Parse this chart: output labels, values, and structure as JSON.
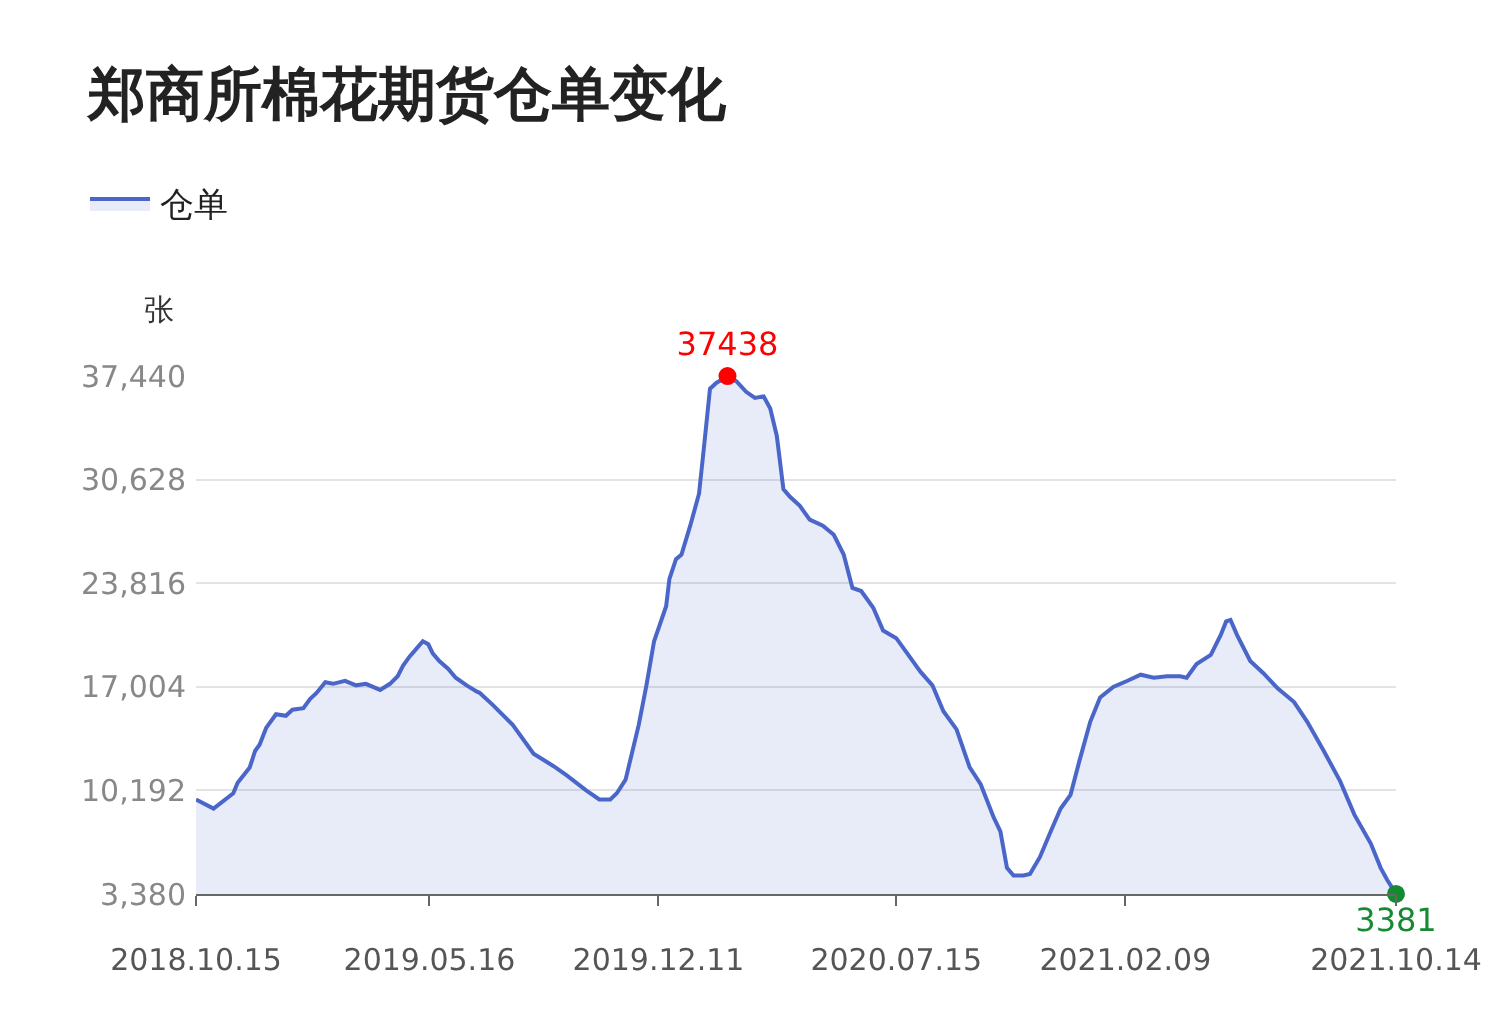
{
  "chart_data": {
    "type": "area",
    "title": "郑商所棉花期货仓单变化",
    "ylabel": "张",
    "xlim": [
      "2018-10-15",
      "2021-10-14"
    ],
    "xticks": [
      {
        "value": "2018-10-15",
        "label": "2018.10.15"
      },
      {
        "value": "2019-05-16",
        "label": "2019.05.16"
      },
      {
        "value": "2019-12-11",
        "label": "2019.12.11"
      },
      {
        "value": "2020-07-15",
        "label": "2020.07.15"
      },
      {
        "value": "2021-02-09",
        "label": "2021.02.09"
      },
      {
        "value": "2021-10-14",
        "label": "2021.10.14"
      }
    ],
    "ylim": [
      3380,
      37440
    ],
    "yticks": [
      {
        "value": 3380,
        "label": "3,380"
      },
      {
        "value": 10192,
        "label": "10,192"
      },
      {
        "value": 17004,
        "label": "17,004"
      },
      {
        "value": 23816,
        "label": "23,816"
      },
      {
        "value": 30628,
        "label": "30,628"
      },
      {
        "value": 37440,
        "label": "37,440"
      }
    ],
    "grid": "y",
    "legend": "top left",
    "series": [
      {
        "name": "仓单",
        "color": "#4a66c9",
        "x": [
          "2018-10-15",
          "2018-10-31",
          "2018-11-18",
          "2018-11-22",
          "2018-12-03",
          "2018-12-08",
          "2018-12-12",
          "2018-12-18",
          "2018-12-27",
          "2019-01-05",
          "2019-01-11",
          "2019-01-21",
          "2019-01-27",
          "2019-02-02",
          "2019-02-10",
          "2019-02-17",
          "2019-02-28",
          "2019-03-10",
          "2019-03-19",
          "2019-04-01",
          "2019-04-10",
          "2019-04-17",
          "2019-04-22",
          "2019-04-28",
          "2019-05-04",
          "2019-05-10",
          "2019-05-15",
          "2019-05-19",
          "2019-05-25",
          "2019-06-02",
          "2019-06-09",
          "2019-06-19",
          "2019-06-28",
          "2019-07-01",
          "2019-07-13",
          "2019-07-31",
          "2019-08-19",
          "2019-09-06",
          "2019-09-18",
          "2019-10-06",
          "2019-10-18",
          "2019-10-28",
          "2019-11-03",
          "2019-11-11",
          "2019-11-23",
          "2019-11-30",
          "2019-12-07",
          "2019-12-18",
          "2019-12-21",
          "2019-12-27",
          "2020-01-01",
          "2020-01-09",
          "2020-01-17",
          "2020-01-21",
          "2020-01-27",
          "2020-02-02",
          "2020-02-12",
          "2020-02-20",
          "2020-02-29",
          "2020-03-08",
          "2020-03-16",
          "2020-03-22",
          "2020-03-28",
          "2020-04-03",
          "2020-04-09",
          "2020-04-18",
          "2020-04-27",
          "2020-05-09",
          "2020-05-19",
          "2020-05-28",
          "2020-06-05",
          "2020-06-13",
          "2020-06-24",
          "2020-07-03",
          "2020-07-15",
          "2020-07-24",
          "2020-08-06",
          "2020-08-17",
          "2020-08-27",
          "2020-09-08",
          "2020-09-20",
          "2020-09-30",
          "2020-10-12",
          "2020-10-18",
          "2020-10-24",
          "2020-10-30",
          "2020-11-08",
          "2020-11-14",
          "2020-11-23",
          "2020-12-03",
          "2020-12-12",
          "2020-12-21",
          "2020-12-29",
          "2021-01-08",
          "2021-01-17",
          "2021-01-29",
          "2021-02-11",
          "2021-02-23",
          "2021-03-07",
          "2021-03-19",
          "2021-03-31",
          "2021-04-06",
          "2021-04-15",
          "2021-04-28",
          "2021-05-07",
          "2021-05-12",
          "2021-05-16",
          "2021-05-22",
          "2021-06-03",
          "2021-06-15",
          "2021-06-28",
          "2021-07-13",
          "2021-07-25",
          "2021-08-09",
          "2021-08-24",
          "2021-09-06",
          "2021-09-21",
          "2021-09-30",
          "2021-10-06",
          "2021-10-14"
        ],
        "values": [
          9600,
          9000,
          10000,
          10700,
          11700,
          12800,
          13200,
          14300,
          15200,
          15100,
          15500,
          15600,
          16200,
          16600,
          17300,
          17200,
          17400,
          17100,
          17200,
          16800,
          17200,
          17700,
          18400,
          19000,
          19500,
          20000,
          19800,
          19200,
          18700,
          18200,
          17600,
          17100,
          16700,
          16600,
          15800,
          14500,
          12600,
          11800,
          11200,
          10200,
          9600,
          9600,
          10000,
          10900,
          14500,
          17100,
          20000,
          22300,
          24100,
          25400,
          25700,
          27600,
          29700,
          32400,
          36600,
          37000,
          37400,
          37100,
          36400,
          36000,
          36100,
          35300,
          33500,
          30000,
          29500,
          28900,
          28000,
          27600,
          27000,
          25700,
          23500,
          23300,
          22200,
          20700,
          20200,
          19300,
          18000,
          17100,
          15400,
          14200,
          11700,
          10600,
          8400,
          7500,
          5100,
          4600,
          4600,
          4700,
          5800,
          7500,
          9000,
          9900,
          12100,
          14700,
          16300,
          17000,
          17400,
          17800,
          17600,
          17700,
          17700,
          17600,
          18500,
          19100,
          20400,
          21300,
          21400,
          20400,
          18700,
          17900,
          16900,
          16000,
          14700,
          12800,
          10800,
          8600,
          6700,
          5100,
          4300,
          3400
        ]
      },
      {
        "type": "scatter",
        "color": "#ff0000",
        "marker": "circle",
        "x": [
          "2020-02-12"
        ],
        "values": [
          37438
        ],
        "value_labels": [
          "37438"
        ]
      },
      {
        "type": "scatter",
        "color": "#158a32",
        "marker": "circle",
        "x": [
          "2021-10-14"
        ],
        "values": [
          3381
        ],
        "value_labels": [
          "3381"
        ]
      }
    ]
  }
}
